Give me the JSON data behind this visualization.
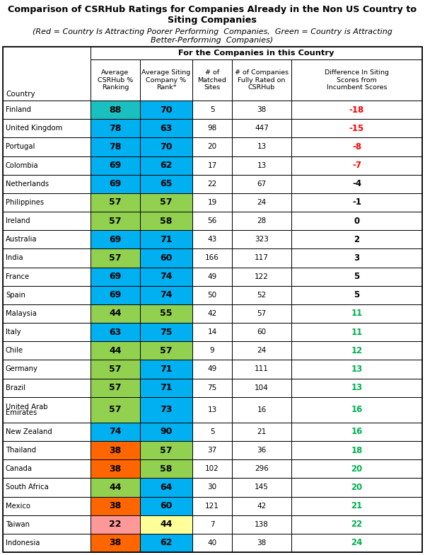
{
  "title_line1": "Comparison of CSRHub Ratings for Companies Already in the Non US Country to",
  "title_line2": "Siting Companies",
  "subtitle1": "(Red = Country Is Attracting Poorer Performing  Companies,  Green = Country is Attracting",
  "subtitle2": "Better-Performing  Companies)",
  "rows": [
    {
      "country": "Finland",
      "avg": 88,
      "siting": 70,
      "matched": 5,
      "rated": 38,
      "diff": -18,
      "avg_color": "#1ABFBF",
      "sit_color": "#00B0F0"
    },
    {
      "country": "United Kingdom",
      "avg": 78,
      "siting": 63,
      "matched": 98,
      "rated": 447,
      "diff": -15,
      "avg_color": "#00B0F0",
      "sit_color": "#00B0F0"
    },
    {
      "country": "Portugal",
      "avg": 78,
      "siting": 70,
      "matched": 20,
      "rated": 13,
      "diff": -8,
      "avg_color": "#00B0F0",
      "sit_color": "#00B0F0"
    },
    {
      "country": "Colombia",
      "avg": 69,
      "siting": 62,
      "matched": 17,
      "rated": 13,
      "diff": -7,
      "avg_color": "#00B0F0",
      "sit_color": "#00B0F0"
    },
    {
      "country": "Netherlands",
      "avg": 69,
      "siting": 65,
      "matched": 22,
      "rated": 67,
      "diff": -4,
      "avg_color": "#00B0F0",
      "sit_color": "#00B0F0"
    },
    {
      "country": "Philippines",
      "avg": 57,
      "siting": 57,
      "matched": 19,
      "rated": 24,
      "diff": -1,
      "avg_color": "#92D050",
      "sit_color": "#92D050"
    },
    {
      "country": "Ireland",
      "avg": 57,
      "siting": 58,
      "matched": 56,
      "rated": 28,
      "diff": 0,
      "avg_color": "#92D050",
      "sit_color": "#92D050"
    },
    {
      "country": "Australia",
      "avg": 69,
      "siting": 71,
      "matched": 43,
      "rated": 323,
      "diff": 2,
      "avg_color": "#00B0F0",
      "sit_color": "#00B0F0"
    },
    {
      "country": "India",
      "avg": 57,
      "siting": 60,
      "matched": 166,
      "rated": 117,
      "diff": 3,
      "avg_color": "#92D050",
      "sit_color": "#00B0F0"
    },
    {
      "country": "France",
      "avg": 69,
      "siting": 74,
      "matched": 49,
      "rated": 122,
      "diff": 5,
      "avg_color": "#00B0F0",
      "sit_color": "#00B0F0"
    },
    {
      "country": "Spain",
      "avg": 69,
      "siting": 74,
      "matched": 50,
      "rated": 52,
      "diff": 5,
      "avg_color": "#00B0F0",
      "sit_color": "#00B0F0"
    },
    {
      "country": "Malaysia",
      "avg": 44,
      "siting": 55,
      "matched": 42,
      "rated": 57,
      "diff": 11,
      "avg_color": "#92D050",
      "sit_color": "#92D050"
    },
    {
      "country": "Italy",
      "avg": 63,
      "siting": 75,
      "matched": 14,
      "rated": 60,
      "diff": 11,
      "avg_color": "#00B0F0",
      "sit_color": "#00B0F0"
    },
    {
      "country": "Chile",
      "avg": 44,
      "siting": 57,
      "matched": 9,
      "rated": 24,
      "diff": 12,
      "avg_color": "#92D050",
      "sit_color": "#92D050"
    },
    {
      "country": "Germany",
      "avg": 57,
      "siting": 71,
      "matched": 49,
      "rated": 111,
      "diff": 13,
      "avg_color": "#92D050",
      "sit_color": "#00B0F0"
    },
    {
      "country": "Brazil",
      "avg": 57,
      "siting": 71,
      "matched": 75,
      "rated": 104,
      "diff": 13,
      "avg_color": "#92D050",
      "sit_color": "#00B0F0"
    },
    {
      "country": "United Arab\nEmirates",
      "avg": 57,
      "siting": 73,
      "matched": 13,
      "rated": 16,
      "diff": 16,
      "avg_color": "#92D050",
      "sit_color": "#00B0F0"
    },
    {
      "country": "New Zealand",
      "avg": 74,
      "siting": 90,
      "matched": 5,
      "rated": 21,
      "diff": 16,
      "avg_color": "#00B0F0",
      "sit_color": "#00B0F0"
    },
    {
      "country": "Thailand",
      "avg": 38,
      "siting": 57,
      "matched": 37,
      "rated": 36,
      "diff": 18,
      "avg_color": "#FF6600",
      "sit_color": "#92D050"
    },
    {
      "country": "Canada",
      "avg": 38,
      "siting": 58,
      "matched": 102,
      "rated": 296,
      "diff": 20,
      "avg_color": "#FF6600",
      "sit_color": "#92D050"
    },
    {
      "country": "South Africa",
      "avg": 44,
      "siting": 64,
      "matched": 30,
      "rated": 145,
      "diff": 20,
      "avg_color": "#92D050",
      "sit_color": "#00B0F0"
    },
    {
      "country": "Mexico",
      "avg": 38,
      "siting": 60,
      "matched": 121,
      "rated": 42,
      "diff": 21,
      "avg_color": "#FF6600",
      "sit_color": "#00B0F0"
    },
    {
      "country": "Taiwan",
      "avg": 22,
      "siting": 44,
      "matched": 7,
      "rated": 138,
      "diff": 22,
      "avg_color": "#FF9999",
      "sit_color": "#FFFF99"
    },
    {
      "country": "Indonesia",
      "avg": 38,
      "siting": 62,
      "matched": 40,
      "rated": 38,
      "diff": 24,
      "avg_color": "#FF6600",
      "sit_color": "#00B0F0"
    }
  ],
  "col_headers": [
    "Average\nCSRHub %\nRanking",
    "Average Siting\nCompany %\nRank*",
    "# of\nMatched\nSites",
    "# of Companies\nFully Rated on\nCSRHub",
    "Difference In Siting\nScores from\nIncumbent Scores"
  ],
  "diff_neg_strong": "#FF0000",
  "diff_pos_strong": "#00B050",
  "diff_neutral": "#000000"
}
